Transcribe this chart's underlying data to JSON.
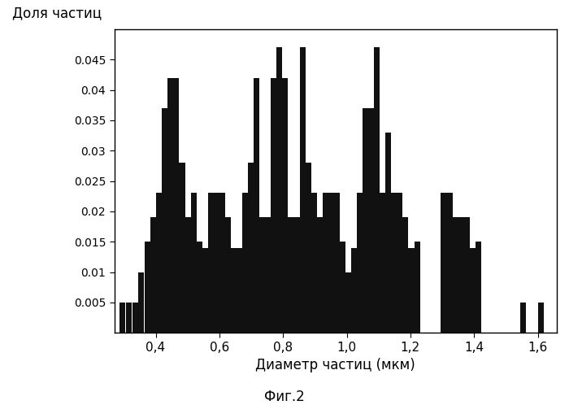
{
  "ylabel": "Доля частиц",
  "xlabel": "Диаметр частиц (мкм)",
  "caption": "Фиг.2",
  "bar_color": "#111111",
  "ylim": [
    0,
    0.05
  ],
  "yticks": [
    0.005,
    0.01,
    0.015,
    0.02,
    0.025,
    0.03,
    0.035,
    0.04,
    0.045
  ],
  "ytick_labels": [
    "0.005",
    "0.01",
    "0.015",
    "0.02",
    "0.025",
    "0.03",
    "0.035",
    "0.04",
    "0.045"
  ],
  "xtick_positions": [
    0.4,
    0.6,
    0.8,
    1.0,
    1.2,
    1.4,
    1.6
  ],
  "xtick_labels": [
    "0,4",
    "0,6",
    "0,8",
    "1,0",
    "1,2",
    "1,4",
    "1,6"
  ],
  "xlim": [
    0.27,
    1.66
  ],
  "bar_width": 0.018,
  "background_color": "#ffffff",
  "bars": [
    [
      0.295,
      0.005
    ],
    [
      0.315,
      0.005
    ],
    [
      0.335,
      0.005
    ],
    [
      0.355,
      0.01
    ],
    [
      0.375,
      0.015
    ],
    [
      0.393,
      0.019
    ],
    [
      0.411,
      0.023
    ],
    [
      0.429,
      0.037
    ],
    [
      0.447,
      0.042
    ],
    [
      0.465,
      0.042
    ],
    [
      0.483,
      0.028
    ],
    [
      0.501,
      0.019
    ],
    [
      0.519,
      0.023
    ],
    [
      0.537,
      0.015
    ],
    [
      0.555,
      0.014
    ],
    [
      0.573,
      0.023
    ],
    [
      0.591,
      0.023
    ],
    [
      0.609,
      0.023
    ],
    [
      0.627,
      0.019
    ],
    [
      0.645,
      0.014
    ],
    [
      0.663,
      0.014
    ],
    [
      0.681,
      0.023
    ],
    [
      0.699,
      0.028
    ],
    [
      0.717,
      0.042
    ],
    [
      0.735,
      0.019
    ],
    [
      0.753,
      0.019
    ],
    [
      0.771,
      0.042
    ],
    [
      0.789,
      0.047
    ],
    [
      0.807,
      0.042
    ],
    [
      0.825,
      0.019
    ],
    [
      0.843,
      0.019
    ],
    [
      0.861,
      0.047
    ],
    [
      0.879,
      0.028
    ],
    [
      0.897,
      0.023
    ],
    [
      0.915,
      0.019
    ],
    [
      0.933,
      0.023
    ],
    [
      0.951,
      0.023
    ],
    [
      0.969,
      0.023
    ],
    [
      0.987,
      0.015
    ],
    [
      1.005,
      0.01
    ],
    [
      1.023,
      0.014
    ],
    [
      1.041,
      0.023
    ],
    [
      1.059,
      0.037
    ],
    [
      1.077,
      0.037
    ],
    [
      1.095,
      0.047
    ],
    [
      1.113,
      0.023
    ],
    [
      1.131,
      0.033
    ],
    [
      1.149,
      0.023
    ],
    [
      1.167,
      0.023
    ],
    [
      1.185,
      0.019
    ],
    [
      1.203,
      0.014
    ],
    [
      1.221,
      0.015
    ],
    [
      1.305,
      0.023
    ],
    [
      1.323,
      0.023
    ],
    [
      1.341,
      0.019
    ],
    [
      1.359,
      0.019
    ],
    [
      1.377,
      0.019
    ],
    [
      1.395,
      0.014
    ],
    [
      1.413,
      0.015
    ],
    [
      1.555,
      0.005
    ],
    [
      1.61,
      0.005
    ]
  ]
}
